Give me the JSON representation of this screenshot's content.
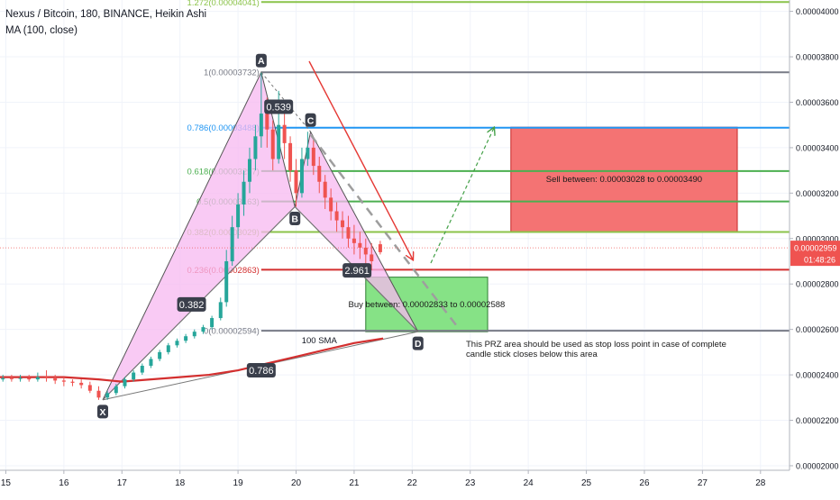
{
  "legend": {
    "title": "Nexus / Bitcoin, 180, BINANCE, Heikin Ashi",
    "indicator": "MA (100, close)"
  },
  "colors": {
    "up": "#26a69a",
    "down": "#ef5350",
    "ma": "#d32f2f",
    "pattern_fill": "#f7b8f0",
    "sell_zone": "#f36b6b",
    "buy_zone": "#7fe07f",
    "grid": "#f0f3fa"
  },
  "price_axis": {
    "ticks": [
      "0.00004000",
      "0.00003800",
      "0.00003600",
      "0.00003400",
      "0.00003200",
      "0.00003000",
      "0.00002800",
      "0.00002600",
      "0.00002400",
      "0.00002200",
      "0.00002000"
    ],
    "last_price": "0.00002959",
    "countdown": "01:48:26"
  },
  "chart_data": {
    "type": "candlestick",
    "ylim": [
      1.98e-05,
      4.05e-05
    ],
    "xlim": [
      14.9,
      28.5
    ],
    "x_ticks": [
      {
        "x": 15,
        "label": "15"
      },
      {
        "x": 16,
        "label": "16"
      },
      {
        "x": 17,
        "label": "17"
      },
      {
        "x": 18,
        "label": "18"
      },
      {
        "x": 19,
        "label": "19"
      },
      {
        "x": 20,
        "label": "20"
      },
      {
        "x": 21,
        "label": "21"
      },
      {
        "x": 22,
        "label": "22"
      },
      {
        "x": 23,
        "label": "23"
      },
      {
        "x": 24,
        "label": "24"
      },
      {
        "x": 25,
        "label": "25"
      },
      {
        "x": 26,
        "label": "26"
      },
      {
        "x": 27,
        "label": "27"
      },
      {
        "x": 28,
        "label": "28"
      }
    ],
    "fib_levels": [
      {
        "value": 4.041e-05,
        "label": "1.272(0.00004041)",
        "color": "#8bc34a"
      },
      {
        "value": 3.732e-05,
        "label": "1(0.00003732)",
        "color": "#787b86"
      },
      {
        "value": 3.488e-05,
        "label": "0.786(0.00003488)",
        "color": "#2196f3"
      },
      {
        "value": 3.297e-05,
        "label": "0.618(0.00003297)",
        "color": "#4caf50"
      },
      {
        "value": 3.163e-05,
        "label": "0.5(0.00003163)",
        "color": "#4caf50"
      },
      {
        "value": 3.029e-05,
        "label": "0.382(0.00003029)",
        "color": "#8bc34a"
      },
      {
        "value": 2.863e-05,
        "label": "0.236(0.00002863)",
        "color": "#d32f2f"
      },
      {
        "value": 2.594e-05,
        "label": "0(0.00002594)",
        "color": "#787b86"
      }
    ],
    "fib_x_range": [
      19.4,
      28.6
    ],
    "pattern_points": [
      {
        "name": "X",
        "x": 16.67,
        "y": 2.29e-05
      },
      {
        "name": "A",
        "x": 19.4,
        "y": 3.732e-05
      },
      {
        "name": "B",
        "x": 19.98,
        "y": 3.14e-05
      },
      {
        "name": "C",
        "x": 20.25,
        "y": 3.47e-05
      },
      {
        "name": "D",
        "x": 22.1,
        "y": 2.59e-05
      }
    ],
    "ratios": [
      {
        "label": "0.382",
        "x": 18.2,
        "y": 2.71e-05
      },
      {
        "label": "0.539",
        "x": 19.7,
        "y": 3.58e-05
      },
      {
        "label": "2.961",
        "x": 21.05,
        "y": 2.86e-05
      },
      {
        "label": "0.786",
        "x": 19.4,
        "y": 2.42e-05
      }
    ],
    "ma_label": {
      "text": "100 SMA",
      "x": 20.4,
      "y": 2.54e-05
    },
    "ma": [
      [
        14.9,
        2.39e-05
      ],
      [
        16.0,
        2.39e-05
      ],
      [
        16.6,
        2.38e-05
      ],
      [
        17.0,
        2.37e-05
      ],
      [
        17.5,
        2.38e-05
      ],
      [
        18.0,
        2.39e-05
      ],
      [
        18.5,
        2.4e-05
      ],
      [
        19.0,
        2.42e-05
      ],
      [
        19.5,
        2.45e-05
      ],
      [
        20.0,
        2.48e-05
      ],
      [
        20.5,
        2.51e-05
      ],
      [
        21.0,
        2.54e-05
      ],
      [
        21.5,
        2.56e-05
      ]
    ],
    "candles": [
      {
        "x": 14.95,
        "o": 2.38e-05,
        "c": 2.385e-05,
        "h": 2.4e-05,
        "l": 2.37e-05
      },
      {
        "x": 15.1,
        "o": 2.385e-05,
        "c": 2.382e-05,
        "h": 2.4e-05,
        "l": 2.37e-05
      },
      {
        "x": 15.25,
        "o": 2.382e-05,
        "c": 2.386e-05,
        "h": 2.4e-05,
        "l": 2.37e-05
      },
      {
        "x": 15.4,
        "o": 2.386e-05,
        "c": 2.38e-05,
        "h": 2.4e-05,
        "l": 2.37e-05
      },
      {
        "x": 15.55,
        "o": 2.38e-05,
        "c": 2.39e-05,
        "h": 2.41e-05,
        "l": 2.37e-05
      },
      {
        "x": 15.7,
        "o": 2.39e-05,
        "c": 2.385e-05,
        "h": 2.42e-05,
        "l": 2.37e-05
      },
      {
        "x": 15.85,
        "o": 2.385e-05,
        "c": 2.375e-05,
        "h": 2.4e-05,
        "l": 2.36e-05
      },
      {
        "x": 16.0,
        "o": 2.375e-05,
        "c": 2.37e-05,
        "h": 2.39e-05,
        "l": 2.35e-05
      },
      {
        "x": 16.15,
        "o": 2.37e-05,
        "c": 2.365e-05,
        "h": 2.38e-05,
        "l": 2.35e-05
      },
      {
        "x": 16.3,
        "o": 2.365e-05,
        "c": 2.355e-05,
        "h": 2.38e-05,
        "l": 2.34e-05
      },
      {
        "x": 16.45,
        "o": 2.355e-05,
        "c": 2.33e-05,
        "h": 2.37e-05,
        "l": 2.32e-05
      },
      {
        "x": 16.6,
        "o": 2.33e-05,
        "c": 2.3e-05,
        "h": 2.35e-05,
        "l": 2.29e-05
      },
      {
        "x": 16.75,
        "o": 2.3e-05,
        "c": 2.32e-05,
        "h": 2.33e-05,
        "l": 2.29e-05
      },
      {
        "x": 16.9,
        "o": 2.32e-05,
        "c": 2.35e-05,
        "h": 2.36e-05,
        "l": 2.31e-05
      },
      {
        "x": 17.05,
        "o": 2.35e-05,
        "c": 2.38e-05,
        "h": 2.39e-05,
        "l": 2.34e-05
      },
      {
        "x": 17.2,
        "o": 2.38e-05,
        "c": 2.41e-05,
        "h": 2.42e-05,
        "l": 2.37e-05
      },
      {
        "x": 17.35,
        "o": 2.41e-05,
        "c": 2.44e-05,
        "h": 2.45e-05,
        "l": 2.4e-05
      },
      {
        "x": 17.5,
        "o": 2.44e-05,
        "c": 2.47e-05,
        "h": 2.48e-05,
        "l": 2.43e-05
      },
      {
        "x": 17.65,
        "o": 2.47e-05,
        "c": 2.5e-05,
        "h": 2.51e-05,
        "l": 2.46e-05
      },
      {
        "x": 17.8,
        "o": 2.5e-05,
        "c": 2.53e-05,
        "h": 2.54e-05,
        "l": 2.49e-05
      },
      {
        "x": 17.95,
        "o": 2.53e-05,
        "c": 2.55e-05,
        "h": 2.56e-05,
        "l": 2.52e-05
      },
      {
        "x": 18.1,
        "o": 2.55e-05,
        "c": 2.57e-05,
        "h": 2.58e-05,
        "l": 2.54e-05
      },
      {
        "x": 18.25,
        "o": 2.57e-05,
        "c": 2.59e-05,
        "h": 2.6e-05,
        "l": 2.56e-05
      },
      {
        "x": 18.4,
        "o": 2.59e-05,
        "c": 2.61e-05,
        "h": 2.62e-05,
        "l": 2.58e-05
      },
      {
        "x": 18.55,
        "o": 2.61e-05,
        "c": 2.65e-05,
        "h": 2.66e-05,
        "l": 2.6e-05
      },
      {
        "x": 18.7,
        "o": 2.65e-05,
        "c": 2.72e-05,
        "h": 2.74e-05,
        "l": 2.64e-05
      },
      {
        "x": 18.8,
        "o": 2.72e-05,
        "c": 2.9e-05,
        "h": 2.95e-05,
        "l": 2.7e-05
      },
      {
        "x": 18.9,
        "o": 2.9e-05,
        "c": 3.05e-05,
        "h": 3.1e-05,
        "l": 2.88e-05
      },
      {
        "x": 19.0,
        "o": 3.05e-05,
        "c": 3.15e-05,
        "h": 3.2e-05,
        "l": 3e-05
      },
      {
        "x": 19.1,
        "o": 3.15e-05,
        "c": 3.25e-05,
        "h": 3.3e-05,
        "l": 3.1e-05
      },
      {
        "x": 19.2,
        "o": 3.25e-05,
        "c": 3.35e-05,
        "h": 3.4e-05,
        "l": 3.2e-05
      },
      {
        "x": 19.3,
        "o": 3.35e-05,
        "c": 3.45e-05,
        "h": 3.5e-05,
        "l": 3.3e-05
      },
      {
        "x": 19.4,
        "o": 3.45e-05,
        "c": 3.55e-05,
        "h": 3.73e-05,
        "l": 3.4e-05
      },
      {
        "x": 19.5,
        "o": 3.55e-05,
        "c": 3.48e-05,
        "h": 3.62e-05,
        "l": 3.4e-05
      },
      {
        "x": 19.6,
        "o": 3.48e-05,
        "c": 3.35e-05,
        "h": 3.52e-05,
        "l": 3.3e-05
      },
      {
        "x": 19.7,
        "o": 3.35e-05,
        "c": 3.5e-05,
        "h": 3.65e-05,
        "l": 3.33e-05
      },
      {
        "x": 19.8,
        "o": 3.5e-05,
        "c": 3.42e-05,
        "h": 3.55e-05,
        "l": 3.35e-05
      },
      {
        "x": 19.9,
        "o": 3.42e-05,
        "c": 3.3e-05,
        "h": 3.45e-05,
        "l": 3.25e-05
      },
      {
        "x": 20.0,
        "o": 3.3e-05,
        "c": 3.2e-05,
        "h": 3.35e-05,
        "l": 3.14e-05
      },
      {
        "x": 20.1,
        "o": 3.2e-05,
        "c": 3.35e-05,
        "h": 3.4e-05,
        "l": 3.18e-05
      },
      {
        "x": 20.2,
        "o": 3.35e-05,
        "c": 3.4e-05,
        "h": 3.47e-05,
        "l": 3.32e-05
      },
      {
        "x": 20.3,
        "o": 3.4e-05,
        "c": 3.32e-05,
        "h": 3.44e-05,
        "l": 3.28e-05
      },
      {
        "x": 20.4,
        "o": 3.32e-05,
        "c": 3.25e-05,
        "h": 3.36e-05,
        "l": 3.2e-05
      },
      {
        "x": 20.5,
        "o": 3.25e-05,
        "c": 3.18e-05,
        "h": 3.28e-05,
        "l": 3.13e-05
      },
      {
        "x": 20.6,
        "o": 3.18e-05,
        "c": 3.12e-05,
        "h": 3.22e-05,
        "l": 3.08e-05
      },
      {
        "x": 20.7,
        "o": 3.12e-05,
        "c": 3.08e-05,
        "h": 3.16e-05,
        "l": 3.03e-05
      },
      {
        "x": 20.8,
        "o": 3.08e-05,
        "c": 3.05e-05,
        "h": 3.12e-05,
        "l": 3e-05
      },
      {
        "x": 20.9,
        "o": 3.05e-05,
        "c": 3e-05,
        "h": 3.1e-05,
        "l": 2.96e-05
      },
      {
        "x": 21.0,
        "o": 3e-05,
        "c": 2.98e-05,
        "h": 3.06e-05,
        "l": 2.93e-05
      },
      {
        "x": 21.1,
        "o": 2.98e-05,
        "c": 2.96e-05,
        "h": 3.03e-05,
        "l": 2.91e-05
      },
      {
        "x": 21.2,
        "o": 2.96e-05,
        "c": 2.93e-05,
        "h": 3e-05,
        "l": 2.89e-05
      },
      {
        "x": 21.3,
        "o": 2.93e-05,
        "c": 2.9e-05,
        "h": 2.98e-05,
        "l": 2.86e-05
      },
      {
        "x": 21.45,
        "o": 2.975e-05,
        "c": 2.94e-05,
        "h": 2.99e-05,
        "l": 2.93e-05
      }
    ]
  },
  "annotations": {
    "sell_text": "Sell between: 0.00003028 to 0.00003490",
    "buy_text": "Buy between: 0.00002833 to 0.00002588",
    "note_line1": "This PRZ area should be used as stop loss point in case of complete",
    "note_line2": "candle stick closes below this area",
    "sell_zone": {
      "x1": 23.7,
      "x2": 27.6,
      "y1": 3.03e-05,
      "y2": 3.49e-05
    },
    "buy_zone": {
      "x1": 21.2,
      "x2": 23.3,
      "y1": 2.59e-05,
      "y2": 2.83e-05
    }
  }
}
